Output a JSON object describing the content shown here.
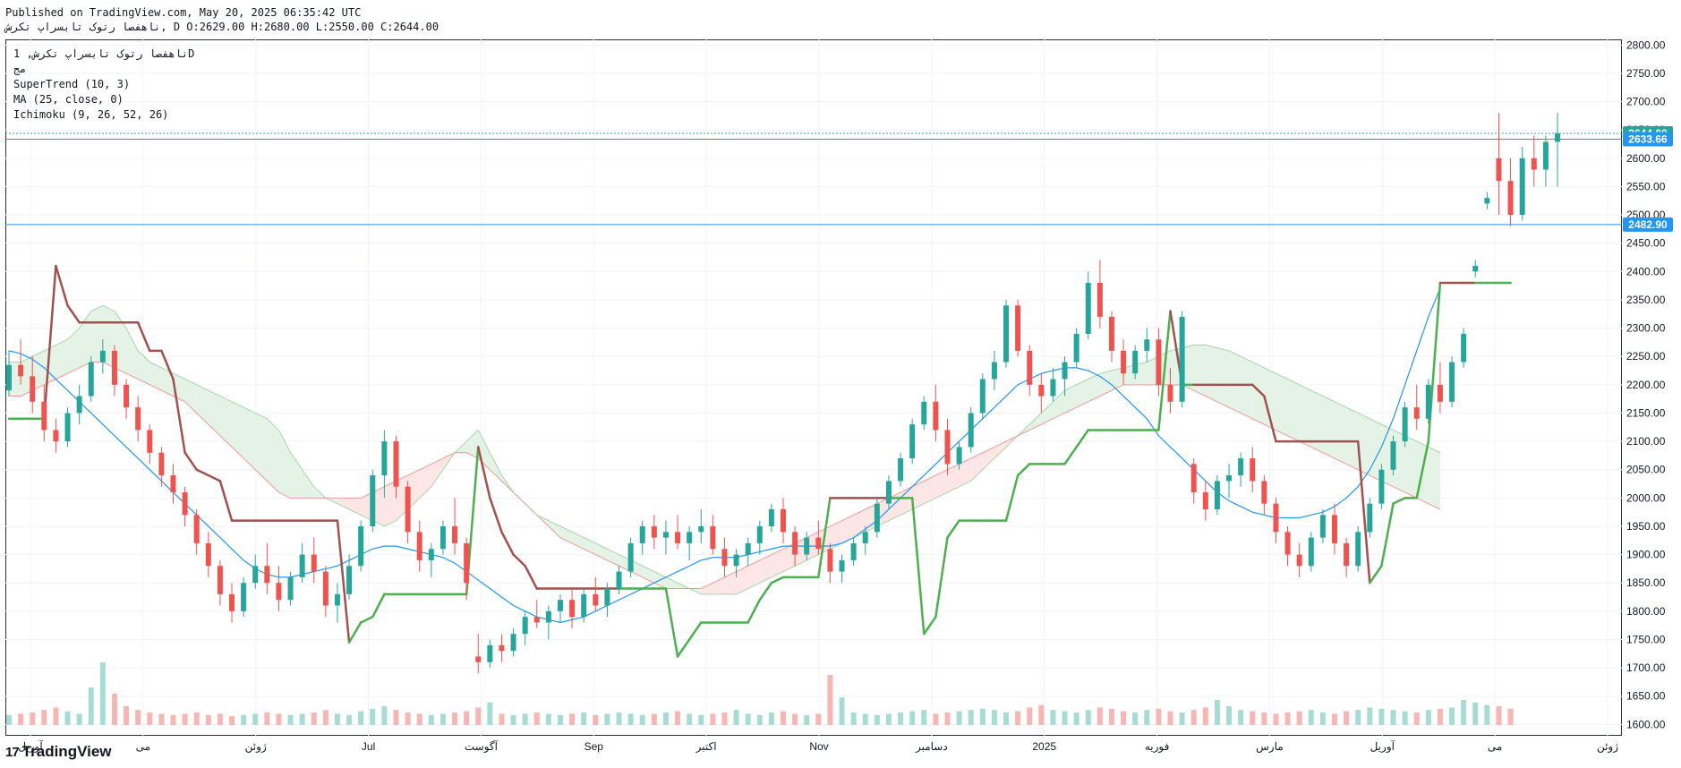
{
  "header": {
    "published": "Published on TradingView.com, May 20, 2025 06:35:42 UTC",
    "symbol_line": "ناهفصا رتوک تابسراپ تکرش, D O:2629.00 H:2680.00 L:2550.00 C:2644.00"
  },
  "legend": {
    "symbol": "ناهفصا رتوک تابسراپ تکرش, 1D",
    "exchange": "مج",
    "indicators": [
      "SuperTrend (10, 3)",
      "MA (25, close, 0)",
      "Ichimoku (9, 26, 52, 26)"
    ]
  },
  "brand": {
    "logo": "17",
    "name": "TradingView"
  },
  "colors": {
    "up": "#26a69a",
    "down": "#ef5350",
    "ma": "#2196f3",
    "supertrend_up": "#4caf50",
    "supertrend_down": "#a0524f",
    "cloud_green": "#e5f3e6",
    "cloud_red": "#fde6e5",
    "hline": "#2196f3"
  },
  "chart_data": {
    "type": "candlestick",
    "y_ticks": [
      "2800.00",
      "2750.00",
      "2700.00",
      "2650.00",
      "2600.00",
      "2550.00",
      "2500.00",
      "2450.00",
      "2400.00",
      "2350.00",
      "2300.00",
      "2250.00",
      "2200.00",
      "2150.00",
      "2100.00",
      "2050.00",
      "2000.00",
      "1950.00",
      "1900.00",
      "1850.00",
      "1800.00",
      "1750.00",
      "1700.00",
      "1650.00",
      "1600.00"
    ],
    "ylim": [
      1580,
      2810
    ],
    "x_labels": [
      "آوریل",
      "می",
      "ژوئن",
      "Jul",
      "آگوست",
      "Sep",
      "اکتبر",
      "Nov",
      "دسامبر",
      "2025",
      "فوریه",
      "مارس",
      "آوریل",
      "می",
      "ژوئن"
    ],
    "price_tags": [
      {
        "label": "2644.00",
        "value": 2644.0,
        "color": "#26a69a"
      },
      {
        "label": "2633.66",
        "value": 2633.66,
        "color": "#2196f3"
      },
      {
        "label": "2482.90",
        "value": 2482.9,
        "color": "#2196f3"
      }
    ],
    "horizontal_lines": [
      2633.66,
      2482.9
    ],
    "last_close": 2644.0,
    "candles": [
      [
        2190,
        2260,
        2180,
        2235
      ],
      [
        2235,
        2280,
        2200,
        2215
      ],
      [
        2215,
        2250,
        2150,
        2170
      ],
      [
        2170,
        2200,
        2100,
        2120
      ],
      [
        2120,
        2140,
        2080,
        2100
      ],
      [
        2100,
        2160,
        2090,
        2150
      ],
      [
        2150,
        2200,
        2130,
        2180
      ],
      [
        2180,
        2250,
        2170,
        2240
      ],
      [
        2240,
        2280,
        2220,
        2260
      ],
      [
        2260,
        2270,
        2180,
        2200
      ],
      [
        2200,
        2210,
        2140,
        2160
      ],
      [
        2160,
        2180,
        2100,
        2120
      ],
      [
        2120,
        2130,
        2060,
        2080
      ],
      [
        2080,
        2090,
        2020,
        2040
      ],
      [
        2040,
        2060,
        1990,
        2010
      ],
      [
        2010,
        2020,
        1950,
        1970
      ],
      [
        1970,
        1980,
        1900,
        1920
      ],
      [
        1920,
        1940,
        1860,
        1880
      ],
      [
        1880,
        1890,
        1810,
        1830
      ],
      [
        1830,
        1850,
        1780,
        1800
      ],
      [
        1800,
        1860,
        1790,
        1850
      ],
      [
        1850,
        1900,
        1840,
        1880
      ],
      [
        1880,
        1920,
        1830,
        1850
      ],
      [
        1850,
        1880,
        1800,
        1820
      ],
      [
        1820,
        1870,
        1810,
        1860
      ],
      [
        1860,
        1920,
        1850,
        1900
      ],
      [
        1900,
        1930,
        1850,
        1870
      ],
      [
        1870,
        1880,
        1790,
        1810
      ],
      [
        1810,
        1850,
        1780,
        1830
      ],
      [
        1830,
        1900,
        1820,
        1880
      ],
      [
        1880,
        1960,
        1870,
        1950
      ],
      [
        1950,
        2050,
        1940,
        2040
      ],
      [
        2040,
        2120,
        2000,
        2100
      ],
      [
        2100,
        2110,
        2000,
        2020
      ],
      [
        2020,
        2030,
        1920,
        1940
      ],
      [
        1940,
        1960,
        1870,
        1890
      ],
      [
        1890,
        1920,
        1860,
        1910
      ],
      [
        1910,
        1960,
        1900,
        1950
      ],
      [
        1950,
        2000,
        1900,
        1920
      ],
      [
        1920,
        1930,
        1820,
        1850
      ],
      [
        1720,
        1760,
        1690,
        1710
      ],
      [
        1710,
        1750,
        1700,
        1740
      ],
      [
        1740,
        1760,
        1710,
        1730
      ],
      [
        1730,
        1770,
        1720,
        1760
      ],
      [
        1760,
        1800,
        1740,
        1790
      ],
      [
        1790,
        1820,
        1770,
        1780
      ],
      [
        1780,
        1810,
        1750,
        1800
      ],
      [
        1800,
        1830,
        1780,
        1820
      ],
      [
        1820,
        1840,
        1770,
        1790
      ],
      [
        1790,
        1840,
        1780,
        1830
      ],
      [
        1830,
        1860,
        1800,
        1810
      ],
      [
        1810,
        1850,
        1790,
        1840
      ],
      [
        1840,
        1880,
        1830,
        1870
      ],
      [
        1870,
        1930,
        1860,
        1920
      ],
      [
        1920,
        1960,
        1900,
        1950
      ],
      [
        1950,
        1970,
        1910,
        1930
      ],
      [
        1930,
        1960,
        1900,
        1940
      ],
      [
        1940,
        1970,
        1910,
        1920
      ],
      [
        1920,
        1950,
        1890,
        1940
      ],
      [
        1940,
        1980,
        1920,
        1950
      ],
      [
        1950,
        1970,
        1900,
        1910
      ],
      [
        1910,
        1930,
        1860,
        1880
      ],
      [
        1880,
        1910,
        1860,
        1900
      ],
      [
        1900,
        1930,
        1880,
        1920
      ],
      [
        1920,
        1960,
        1900,
        1950
      ],
      [
        1950,
        1990,
        1940,
        1980
      ],
      [
        1980,
        2000,
        1920,
        1940
      ],
      [
        1940,
        1950,
        1880,
        1900
      ],
      [
        1900,
        1940,
        1890,
        1930
      ],
      [
        1930,
        1960,
        1900,
        1910
      ],
      [
        1910,
        1920,
        1850,
        1870
      ],
      [
        1870,
        1900,
        1850,
        1890
      ],
      [
        1890,
        1930,
        1880,
        1920
      ],
      [
        1920,
        1950,
        1900,
        1940
      ],
      [
        1940,
        2000,
        1930,
        1990
      ],
      [
        1990,
        2040,
        1980,
        2030
      ],
      [
        2030,
        2080,
        2020,
        2070
      ],
      [
        2070,
        2140,
        2060,
        2130
      ],
      [
        2130,
        2180,
        2120,
        2170
      ],
      [
        2170,
        2200,
        2100,
        2120
      ],
      [
        2120,
        2140,
        2040,
        2060
      ],
      [
        2060,
        2100,
        2050,
        2090
      ],
      [
        2090,
        2160,
        2080,
        2150
      ],
      [
        2150,
        2220,
        2140,
        2210
      ],
      [
        2210,
        2260,
        2190,
        2240
      ],
      [
        2240,
        2350,
        2230,
        2340
      ],
      [
        2340,
        2350,
        2250,
        2260
      ],
      [
        2260,
        2270,
        2180,
        2200
      ],
      [
        2200,
        2220,
        2150,
        2180
      ],
      [
        2180,
        2230,
        2170,
        2210
      ],
      [
        2210,
        2250,
        2180,
        2240
      ],
      [
        2240,
        2300,
        2230,
        2290
      ],
      [
        2290,
        2400,
        2280,
        2380
      ],
      [
        2380,
        2420,
        2300,
        2320
      ],
      [
        2320,
        2330,
        2240,
        2260
      ],
      [
        2260,
        2280,
        2200,
        2220
      ],
      [
        2220,
        2270,
        2210,
        2260
      ],
      [
        2260,
        2300,
        2240,
        2280
      ],
      [
        2280,
        2300,
        2180,
        2200
      ],
      [
        2200,
        2230,
        2150,
        2170
      ],
      [
        2170,
        2330,
        2160,
        2320
      ],
      [
        2060,
        2070,
        1990,
        2010
      ],
      [
        2010,
        2030,
        1960,
        1980
      ],
      [
        1980,
        2040,
        1970,
        2030
      ],
      [
        2030,
        2060,
        2000,
        2040
      ],
      [
        2040,
        2080,
        2020,
        2070
      ],
      [
        2070,
        2090,
        2010,
        2030
      ],
      [
        2030,
        2040,
        1970,
        1990
      ],
      [
        1990,
        2000,
        1920,
        1940
      ],
      [
        1940,
        1950,
        1880,
        1900
      ],
      [
        1900,
        1920,
        1860,
        1880
      ],
      [
        1880,
        1940,
        1870,
        1930
      ],
      [
        1930,
        1980,
        1920,
        1970
      ],
      [
        1970,
        1990,
        1900,
        1920
      ],
      [
        1920,
        1930,
        1860,
        1880
      ],
      [
        1880,
        1950,
        1870,
        1940
      ],
      [
        1940,
        2000,
        1930,
        1990
      ],
      [
        1990,
        2060,
        1980,
        2050
      ],
      [
        2050,
        2110,
        2040,
        2100
      ],
      [
        2100,
        2170,
        2090,
        2160
      ],
      [
        2160,
        2200,
        2120,
        2140
      ],
      [
        2140,
        2210,
        2130,
        2200
      ],
      [
        2200,
        2240,
        2150,
        2170
      ],
      [
        2170,
        2250,
        2160,
        2240
      ],
      [
        2240,
        2300,
        2230,
        2290
      ],
      [
        2400,
        2420,
        2390,
        2410
      ],
      [
        2520,
        2540,
        2510,
        2530
      ],
      [
        2600,
        2680,
        2500,
        2560
      ],
      [
        2560,
        2600,
        2480,
        2500
      ],
      [
        2500,
        2620,
        2490,
        2600
      ],
      [
        2600,
        2640,
        2550,
        2580
      ],
      [
        2580,
        2640,
        2550,
        2629
      ],
      [
        2629,
        2680,
        2550,
        2644
      ]
    ],
    "volume": [
      8,
      9,
      10,
      12,
      14,
      11,
      9,
      30,
      50,
      25,
      15,
      12,
      10,
      9,
      8,
      9,
      10,
      8,
      9,
      7,
      8,
      9,
      10,
      9,
      8,
      9,
      10,
      12,
      9,
      8,
      11,
      13,
      15,
      12,
      10,
      9,
      8,
      9,
      10,
      11,
      14,
      18,
      9,
      8,
      9,
      10,
      9,
      8,
      9,
      10,
      8,
      9,
      10,
      9,
      8,
      9,
      10,
      11,
      9,
      8,
      9,
      10,
      12,
      9,
      8,
      10,
      11,
      9,
      8,
      9,
      40,
      22,
      10,
      9,
      8,
      9,
      10,
      11,
      12,
      9,
      10,
      11,
      12,
      13,
      12,
      10,
      11,
      14,
      16,
      12,
      11,
      10,
      12,
      14,
      13,
      11,
      10,
      12,
      13,
      11,
      10,
      12,
      14,
      20,
      15,
      12,
      11,
      10,
      9,
      10,
      11,
      12,
      10,
      9,
      11,
      12,
      14,
      13,
      12,
      11,
      10,
      12,
      13,
      14,
      20,
      18,
      16,
      15,
      13
    ],
    "ma": [
      2260,
      2255,
      2245,
      2230,
      2210,
      2190,
      2170,
      2150,
      2130,
      2110,
      2090,
      2070,
      2050,
      2030,
      2010,
      1990,
      1970,
      1950,
      1930,
      1910,
      1890,
      1875,
      1865,
      1860,
      1860,
      1865,
      1870,
      1875,
      1880,
      1890,
      1900,
      1910,
      1915,
      1915,
      1910,
      1905,
      1900,
      1895,
      1885,
      1870,
      1855,
      1840,
      1825,
      1810,
      1800,
      1790,
      1785,
      1780,
      1785,
      1790,
      1800,
      1810,
      1820,
      1830,
      1840,
      1850,
      1860,
      1870,
      1880,
      1890,
      1895,
      1895,
      1895,
      1900,
      1905,
      1910,
      1915,
      1915,
      1915,
      1915,
      1915,
      1920,
      1930,
      1945,
      1960,
      1980,
      2000,
      2020,
      2040,
      2060,
      2080,
      2100,
      2120,
      2140,
      2160,
      2180,
      2200,
      2210,
      2220,
      2225,
      2230,
      2230,
      2225,
      2215,
      2200,
      2180,
      2160,
      2140,
      2110,
      2090,
      2070,
      2050,
      2030,
      2010,
      1995,
      1985,
      1975,
      1970,
      1965,
      1965,
      1965,
      1970,
      1975,
      1985,
      2000,
      2020,
      2050,
      2090,
      2140,
      2200,
      2260,
      2320,
      2370
    ],
    "supertrend": [
      2140,
      2140,
      2140,
      2140,
      2410,
      2340,
      2310,
      2310,
      2310,
      2310,
      2310,
      2310,
      2260,
      2260,
      2210,
      2080,
      2050,
      2040,
      2030,
      1960,
      1960,
      1960,
      1960,
      1960,
      1960,
      1960,
      1960,
      1960,
      1960,
      1745,
      1780,
      1790,
      1830,
      1830,
      1830,
      1830,
      1830,
      1830,
      1830,
      1830,
      2090,
      2000,
      1940,
      1900,
      1880,
      1840,
      1840,
      1840,
      1840,
      1840,
      1840,
      1840,
      1840,
      1840,
      1840,
      1840,
      1840,
      1720,
      1750,
      1780,
      1780,
      1780,
      1780,
      1780,
      1820,
      1850,
      1860,
      1860,
      1860,
      1860,
      2000,
      2000,
      2000,
      2000,
      2000,
      2000,
      2000,
      2000,
      1760,
      1790,
      1930,
      1960,
      1960,
      1960,
      1960,
      1960,
      2040,
      2060,
      2060,
      2060,
      2060,
      2090,
      2120,
      2120,
      2120,
      2120,
      2120,
      2120,
      2120,
      2330,
      2200,
      2200,
      2200,
      2200,
      2200,
      2200,
      2200,
      2180,
      2100,
      2100,
      2100,
      2100,
      2100,
      2100,
      2100,
      2100,
      1850,
      1880,
      1990,
      2000,
      2000,
      2100,
      2380,
      2380,
      2380,
      2380,
      2380,
      2380,
      2380
    ],
    "cloud_a": [
      2240,
      2240,
      2250,
      2260,
      2270,
      2280,
      2300,
      2330,
      2340,
      2330,
      2300,
      2260,
      2240,
      2230,
      2220,
      2210,
      2200,
      2190,
      2180,
      2170,
      2160,
      2150,
      2140,
      2120,
      2080,
      2050,
      2020,
      2000,
      1990,
      1980,
      1970,
      1960,
      1950,
      1960,
      1980,
      2000,
      2020,
      2050,
      2080,
      2100,
      2120,
      2080,
      2040,
      2010,
      1990,
      1970,
      1960,
      1950,
      1940,
      1930,
      1920,
      1910,
      1900,
      1890,
      1880,
      1870,
      1860,
      1850,
      1840,
      1830,
      1830,
      1830,
      1830,
      1840,
      1850,
      1860,
      1870,
      1880,
      1890,
      1900,
      1910,
      1920,
      1930,
      1940,
      1950,
      1960,
      1970,
      1980,
      1990,
      2000,
      2010,
      2020,
      2030,
      2050,
      2070,
      2090,
      2110,
      2130,
      2150,
      2170,
      2190,
      2200,
      2210,
      2220,
      2225,
      2230,
      2235,
      2240,
      2250,
      2260,
      2265,
      2270,
      2270,
      2265,
      2260,
      2250,
      2240,
      2230,
      2220,
      2210,
      2200,
      2190,
      2180,
      2170,
      2160,
      2150,
      2140,
      2130,
      2120,
      2110,
      2100,
      2090,
      2080
    ],
    "cloud_b": [
      2180,
      2180,
      2190,
      2200,
      2210,
      2220,
      2230,
      2240,
      2240,
      2230,
      2220,
      2210,
      2200,
      2190,
      2180,
      2170,
      2150,
      2130,
      2110,
      2090,
      2070,
      2050,
      2030,
      2010,
      2000,
      2000,
      2000,
      2000,
      2000,
      2000,
      2000,
      2010,
      2020,
      2030,
      2040,
      2050,
      2060,
      2070,
      2080,
      2080,
      2070,
      2050,
      2030,
      2010,
      1990,
      1970,
      1950,
      1930,
      1920,
      1910,
      1900,
      1890,
      1880,
      1870,
      1860,
      1850,
      1840,
      1840,
      1840,
      1840,
      1850,
      1860,
      1870,
      1880,
      1890,
      1900,
      1910,
      1920,
      1930,
      1940,
      1950,
      1960,
      1970,
      1980,
      1990,
      2000,
      2010,
      2020,
      2030,
      2040,
      2050,
      2060,
      2070,
      2080,
      2090,
      2100,
      2110,
      2120,
      2130,
      2140,
      2150,
      2160,
      2170,
      2180,
      2190,
      2200,
      2200,
      2200,
      2200,
      2200,
      2200,
      2190,
      2180,
      2170,
      2160,
      2150,
      2140,
      2130,
      2120,
      2110,
      2100,
      2090,
      2080,
      2070,
      2060,
      2050,
      2040,
      2030,
      2020,
      2010,
      2000,
      1990,
      1980
    ]
  }
}
